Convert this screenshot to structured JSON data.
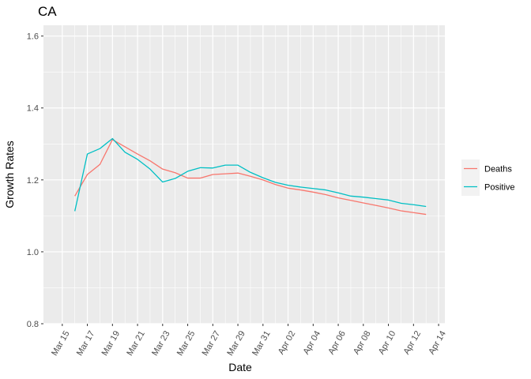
{
  "chart_data": {
    "type": "line",
    "title": "CA",
    "xlabel": "Date",
    "ylabel": "Growth Rates",
    "ylim": [
      0.8,
      1.63
    ],
    "yticks": [
      "0.8",
      "1.0",
      "1.2",
      "1.4",
      "1.6"
    ],
    "xlim": [
      "2020-03-14",
      "2020-04-14"
    ],
    "xticks": [
      "Mar 15",
      "Mar 17",
      "Mar 19",
      "Mar 21",
      "Mar 23",
      "Mar 25",
      "Mar 27",
      "Mar 29",
      "Mar 31",
      "Apr 02",
      "Apr 04",
      "Apr 06",
      "Apr 08",
      "Apr 10",
      "Apr 12",
      "Apr 14"
    ],
    "grid": true,
    "legend_position": "right",
    "x": [
      "2020-03-16",
      "2020-03-17",
      "2020-03-18",
      "2020-03-19",
      "2020-03-20",
      "2020-03-21",
      "2020-03-22",
      "2020-03-23",
      "2020-03-24",
      "2020-03-25",
      "2020-03-26",
      "2020-03-27",
      "2020-03-28",
      "2020-03-29",
      "2020-03-30",
      "2020-03-31",
      "2020-04-01",
      "2020-04-02",
      "2020-04-03",
      "2020-04-04",
      "2020-04-05",
      "2020-04-06",
      "2020-04-07",
      "2020-04-08",
      "2020-04-09",
      "2020-04-10",
      "2020-04-11",
      "2020-04-12",
      "2020-04-13"
    ],
    "series": [
      {
        "name": "Deaths",
        "color": "#F8766D",
        "values": [
          1.155,
          1.215,
          1.243,
          1.312,
          1.292,
          1.272,
          1.253,
          1.23,
          1.22,
          1.205,
          1.205,
          1.215,
          1.217,
          1.219,
          1.21,
          1.2,
          1.187,
          1.177,
          1.172,
          1.166,
          1.159,
          1.15,
          1.143,
          1.136,
          1.129,
          1.122,
          1.114,
          1.109,
          1.104
        ]
      },
      {
        "name": "Positive",
        "color": "#00BFC4",
        "values": [
          1.113,
          1.272,
          1.287,
          1.315,
          1.277,
          1.257,
          1.23,
          1.194,
          1.204,
          1.224,
          1.234,
          1.233,
          1.241,
          1.241,
          1.221,
          1.206,
          1.193,
          1.185,
          1.18,
          1.176,
          1.172,
          1.164,
          1.155,
          1.152,
          1.148,
          1.144,
          1.135,
          1.131,
          1.126
        ]
      }
    ]
  }
}
